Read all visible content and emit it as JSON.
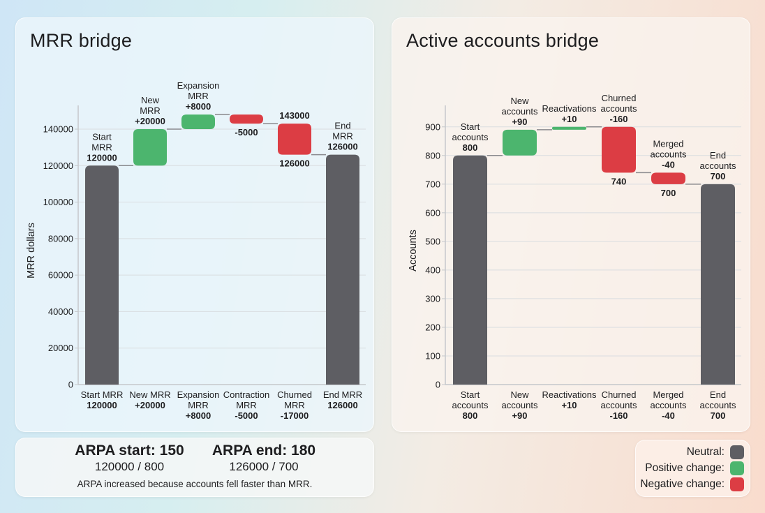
{
  "colors": {
    "neutral": "#5e5e63",
    "positive": "#4cb56e",
    "negative": "#dc3d44",
    "grid": "#d9dde0",
    "connector": "#8a8a8e",
    "axis": "#c5c8cb"
  },
  "mrr_panel": {
    "title": "MRR bridge",
    "ylabel": "MRR dollars"
  },
  "accounts_panel": {
    "title": "Active accounts bridge",
    "ylabel": "Accounts"
  },
  "arpa": {
    "start_heading": "ARPA start: 150",
    "start_formula": "120000 / 800",
    "end_heading": "ARPA end: 180",
    "end_formula": "126000 / 700",
    "note": "ARPA increased because accounts fell faster than MRR."
  },
  "legend": {
    "items": [
      {
        "label": "Neutral:",
        "color_key": "neutral"
      },
      {
        "label": "Positive change:",
        "color_key": "positive"
      },
      {
        "label": "Negative change:",
        "color_key": "negative"
      }
    ]
  },
  "chart_data": [
    {
      "type": "bar",
      "subtype": "waterfall",
      "title": "MRR bridge",
      "xlabel": "",
      "ylabel": "MRR dollars",
      "ylim": [
        0,
        153000
      ],
      "yticks": [
        0,
        20000,
        40000,
        60000,
        80000,
        100000,
        120000,
        140000
      ],
      "grid": true,
      "categories": [
        "Start MRR",
        "New MRR",
        "Expansion MRR",
        "Contraction MRR",
        "Churned MRR",
        "End MRR"
      ],
      "tick_labels": [
        {
          "name": [
            "Start MRR"
          ],
          "value": "120000"
        },
        {
          "name": [
            "New MRR"
          ],
          "value": "+20000"
        },
        {
          "name": [
            "Expansion",
            "MRR"
          ],
          "value": "+8000"
        },
        {
          "name": [
            "Contraction",
            "MRR"
          ],
          "value": "-5000"
        },
        {
          "name": [
            "Churned",
            "MRR"
          ],
          "value": "-17000"
        },
        {
          "name": [
            "End MRR"
          ],
          "value": "126000"
        }
      ],
      "steps": [
        {
          "kind": "neutral",
          "start": 0,
          "end": 120000,
          "value": 120000,
          "label_lines": [
            "Start",
            "MRR"
          ],
          "label_value": "120000"
        },
        {
          "kind": "positive",
          "start": 120000,
          "end": 140000,
          "value": 20000,
          "label_lines": [
            "New",
            "MRR"
          ],
          "label_value": "+20000"
        },
        {
          "kind": "positive",
          "start": 140000,
          "end": 148000,
          "value": 8000,
          "label_lines": [
            "Expansion",
            "MRR"
          ],
          "label_value": "+8000"
        },
        {
          "kind": "negative",
          "start": 148000,
          "end": 143000,
          "value": -5000,
          "label_lines": [],
          "label_value": "-5000"
        },
        {
          "kind": "negative",
          "start": 143000,
          "end": 126000,
          "value": -17000,
          "label_lines": [],
          "top_value": "143000",
          "bottom_value": "126000"
        },
        {
          "kind": "neutral",
          "start": 0,
          "end": 126000,
          "value": 126000,
          "label_lines": [
            "End",
            "MRR"
          ],
          "label_value": "126000"
        }
      ]
    },
    {
      "type": "bar",
      "subtype": "waterfall",
      "title": "Active accounts bridge",
      "xlabel": "",
      "ylabel": "Accounts",
      "ylim": [
        0,
        975
      ],
      "yticks": [
        0,
        100,
        200,
        300,
        400,
        500,
        600,
        700,
        800,
        900
      ],
      "grid": true,
      "categories": [
        "Start accounts",
        "New accounts",
        "Reactivations",
        "Churned accounts",
        "Merged accounts",
        "End accounts"
      ],
      "tick_labels": [
        {
          "name": [
            "Start",
            "accounts"
          ],
          "value": "800"
        },
        {
          "name": [
            "New",
            "accounts"
          ],
          "value": "+90"
        },
        {
          "name": [
            "Reactivations"
          ],
          "value": "+10"
        },
        {
          "name": [
            "Churned",
            "accounts"
          ],
          "value": "-160"
        },
        {
          "name": [
            "Merged",
            "accounts"
          ],
          "value": "-40"
        },
        {
          "name": [
            "End",
            "accounts"
          ],
          "value": "700"
        }
      ],
      "steps": [
        {
          "kind": "neutral",
          "start": 0,
          "end": 800,
          "value": 800,
          "label_lines": [
            "Start",
            "accounts"
          ],
          "label_value": "800"
        },
        {
          "kind": "positive",
          "start": 800,
          "end": 890,
          "value": 90,
          "label_lines": [
            "New",
            "accounts"
          ],
          "label_value": "+90"
        },
        {
          "kind": "positive",
          "start": 890,
          "end": 900,
          "value": 10,
          "label_lines": [
            "Reactivations"
          ],
          "label_value": "+10"
        },
        {
          "kind": "negative",
          "start": 900,
          "end": 740,
          "value": -160,
          "label_lines": [
            "Churned",
            "accounts"
          ],
          "label_value": "-160",
          "bottom_value": "740"
        },
        {
          "kind": "negative",
          "start": 740,
          "end": 700,
          "value": -40,
          "label_lines": [
            "Merged",
            "accounts"
          ],
          "label_value": "-40",
          "bottom_value": "700"
        },
        {
          "kind": "neutral",
          "start": 0,
          "end": 700,
          "value": 700,
          "label_lines": [
            "End",
            "accounts"
          ],
          "label_value": "700"
        }
      ]
    }
  ]
}
